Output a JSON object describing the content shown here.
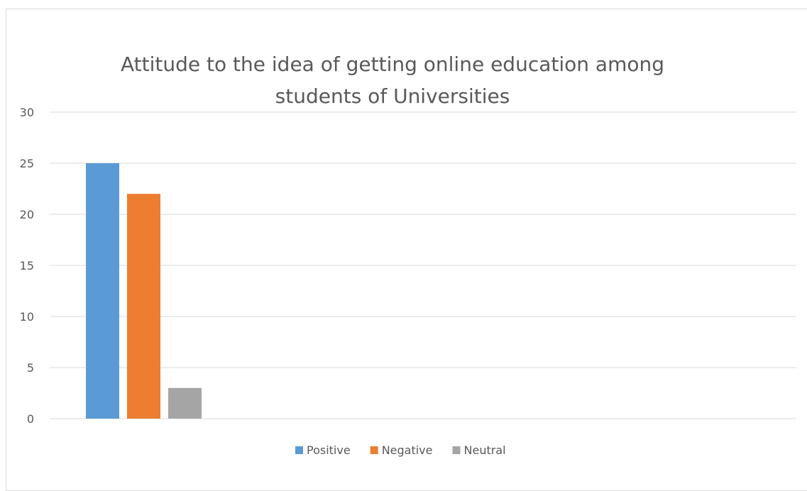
{
  "chart_data": {
    "type": "bar",
    "title": "Attitude to the idea of getting online education among students of Universities",
    "title_lines": [
      "Attitude to the idea of getting online education among",
      "students of Universities"
    ],
    "categories": [
      ""
    ],
    "series": [
      {
        "name": "Positive",
        "values": [
          25
        ],
        "color": "#5b9bd5"
      },
      {
        "name": "Negative",
        "values": [
          22
        ],
        "color": "#ed7d31"
      },
      {
        "name": "Neutral",
        "values": [
          3
        ],
        "color": "#a5a5a5"
      }
    ],
    "xlabel": "",
    "ylabel": "",
    "ylim": [
      0,
      30
    ],
    "yticks": [
      0,
      5,
      10,
      15,
      20,
      25,
      30
    ],
    "grid": true,
    "legend_position": "bottom"
  }
}
